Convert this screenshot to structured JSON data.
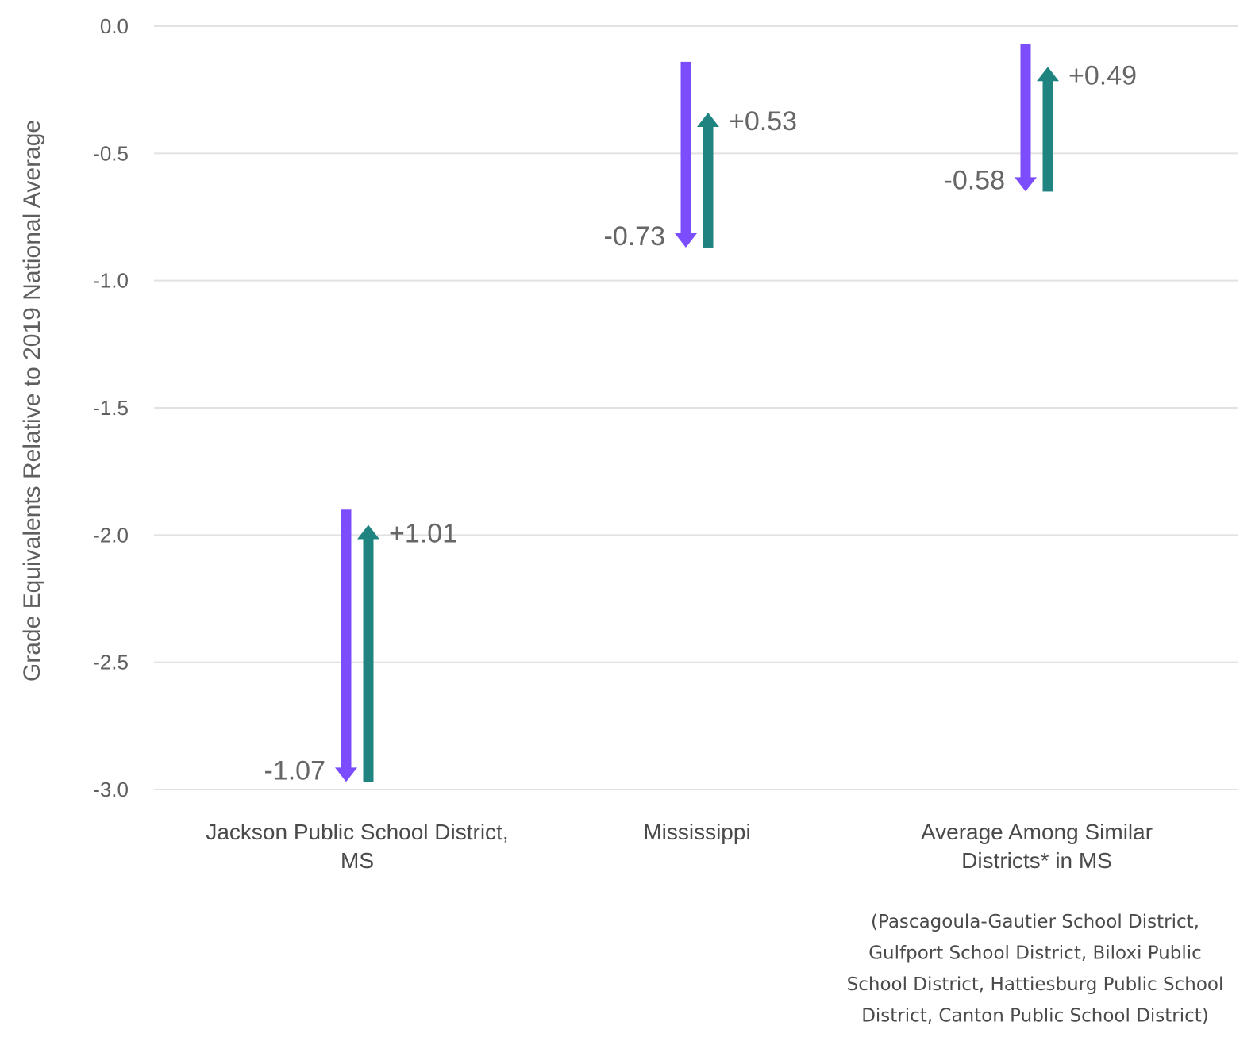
{
  "chart_data": {
    "type": "arrow",
    "ylabel": "Grade Equivalents Relative to 2019 National Average",
    "ylim": [
      -3.0,
      0.0
    ],
    "yticks": [
      "0.0",
      "-0.5",
      "-1.0",
      "-1.5",
      "-2.0",
      "-2.5",
      "-3.0"
    ],
    "grid": true,
    "colors": {
      "decline": "#7c4dff",
      "recovery": "#1f8480"
    },
    "categories": [
      {
        "label_lines": [
          "Jackson Public School District,",
          "MS"
        ],
        "start": -1.9,
        "after_decline": -2.97,
        "after_recovery": -1.96,
        "decline_label": "-1.07",
        "recovery_label": "+1.01"
      },
      {
        "label_lines": [
          "Mississippi"
        ],
        "start": -0.14,
        "after_decline": -0.87,
        "after_recovery": -0.34,
        "decline_label": "-0.73",
        "recovery_label": "+0.53"
      },
      {
        "label_lines": [
          "Average Among Similar",
          "Districts* in MS"
        ],
        "start": -0.07,
        "after_decline": -0.65,
        "after_recovery": -0.16,
        "decline_label": "-0.58",
        "recovery_label": "+0.49"
      }
    ],
    "footnote_lines": [
      "(Pascagoula-Gautier School District,",
      "Gulfport School District, Biloxi Public",
      "School District, Hattiesburg Public School",
      "District, Canton Public School District)"
    ]
  }
}
